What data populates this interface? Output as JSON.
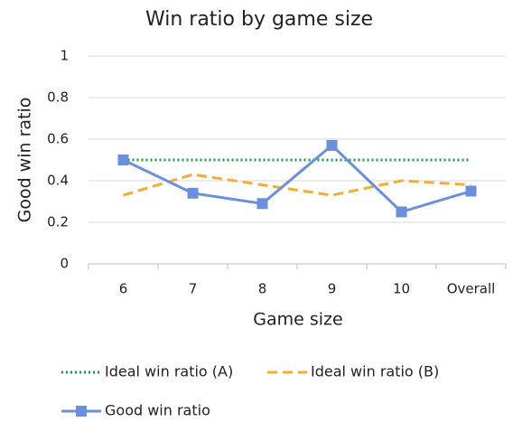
{
  "chart_data": {
    "type": "line",
    "title": "Win ratio by game size",
    "x_label": "Game size",
    "y_label": "Good win ratio",
    "categories": [
      "6",
      "7",
      "8",
      "9",
      "10",
      "Overall"
    ],
    "series": [
      {
        "name": "Ideal win ratio (A)",
        "color": "#1e9e3e",
        "style": "dotted",
        "values": [
          0.5,
          0.5,
          0.5,
          0.5,
          0.5,
          0.5
        ]
      },
      {
        "name": "Ideal win ratio (B)",
        "color": "#f2ae2e",
        "style": "dashed",
        "values": [
          0.33,
          0.43,
          0.38,
          0.33,
          0.4,
          0.38
        ]
      },
      {
        "name": "Good win ratio",
        "color": "#6a8fdc",
        "style": "solid",
        "marker": "square",
        "values": [
          0.5,
          0.34,
          0.29,
          0.57,
          0.25,
          0.35
        ]
      }
    ],
    "ylim": [
      0,
      1
    ],
    "yticks": [
      0,
      0.2,
      0.4,
      0.6,
      0.8,
      1
    ],
    "grid": true
  }
}
